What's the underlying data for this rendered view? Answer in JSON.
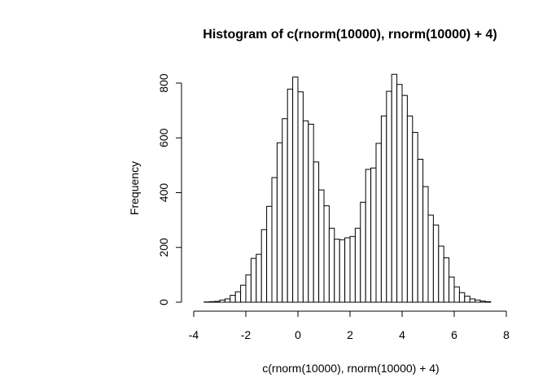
{
  "chart_data": {
    "type": "bar",
    "title": "Histogram of c(rnorm(10000), rnorm(10000) + 4)",
    "xlabel": "c(rnorm(10000), rnorm(10000) + 4)",
    "ylabel": "Frequency",
    "xlim": [
      -4,
      8
    ],
    "ylim": [
      0,
      800
    ],
    "x_ticks": [
      -4,
      -2,
      0,
      2,
      4,
      6,
      8
    ],
    "y_ticks": [
      0,
      200,
      400,
      600,
      800
    ],
    "bin_width": 0.2,
    "bin_start": -3.6,
    "values": [
      1,
      2,
      3,
      8,
      12,
      25,
      38,
      62,
      100,
      160,
      175,
      265,
      350,
      455,
      582,
      670,
      778,
      822,
      768,
      662,
      650,
      512,
      410,
      352,
      270,
      230,
      228,
      235,
      240,
      270,
      365,
      485,
      490,
      580,
      680,
      770,
      832,
      795,
      755,
      680,
      620,
      522,
      422,
      318,
      282,
      205,
      162,
      92,
      56,
      35,
      22,
      12,
      8,
      4,
      2
    ],
    "grid": false,
    "legend": "none"
  }
}
